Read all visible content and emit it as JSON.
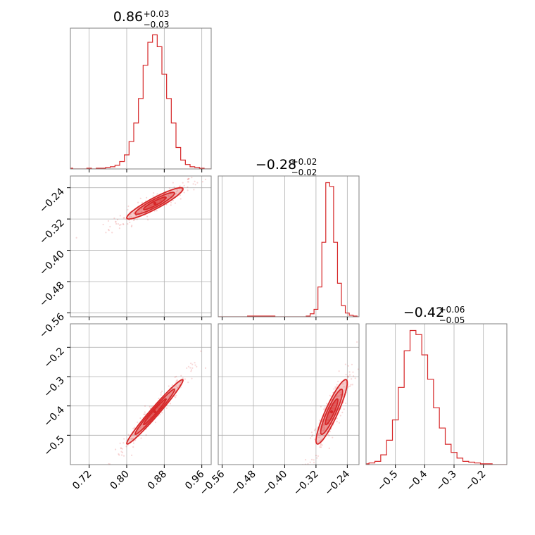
{
  "chart_data": [
    {
      "type": "histogram",
      "panel": "p00",
      "param_index": 0,
      "title": {
        "median": "0.86",
        "plus": "+0.03",
        "minus": "−0.03"
      },
      "x": [
        0.68,
        0.69,
        0.7,
        0.71,
        0.72,
        0.73,
        0.74,
        0.75,
        0.76,
        0.77,
        0.78,
        0.79,
        0.8,
        0.81,
        0.82,
        0.83,
        0.84,
        0.85,
        0.86,
        0.87,
        0.88,
        0.89,
        0.9,
        0.91,
        0.92,
        0.93,
        0.94,
        0.95,
        0.96,
        0.97,
        0.98
      ],
      "y": [
        1,
        0,
        0,
        0,
        1,
        0,
        1,
        1,
        2,
        3,
        5,
        10,
        19,
        37,
        62,
        95,
        140,
        171,
        181,
        165,
        128,
        95,
        62,
        29,
        12,
        6,
        3,
        2,
        1,
        0,
        0
      ],
      "xlim": [
        0.68,
        0.98
      ],
      "xticks": [
        "0.72",
        "0.80",
        "0.88",
        "0.96"
      ]
    },
    {
      "type": "histogram",
      "panel": "p11",
      "param_index": 1,
      "title": {
        "median": "−0.28",
        "plus": "+0.02",
        "minus": "−0.02"
      },
      "x": [
        -0.57,
        -0.56,
        -0.55,
        -0.54,
        -0.53,
        -0.52,
        -0.51,
        -0.5,
        -0.49,
        -0.48,
        -0.47,
        -0.46,
        -0.45,
        -0.44,
        -0.43,
        -0.42,
        -0.41,
        -0.4,
        -0.39,
        -0.38,
        -0.37,
        -0.36,
        -0.35,
        -0.34,
        -0.33,
        -0.32,
        -0.31,
        -0.3,
        -0.29,
        -0.28,
        -0.27,
        -0.26,
        -0.25,
        -0.24,
        -0.23,
        -0.22,
        -0.21
      ],
      "y": [
        0,
        0,
        0,
        0,
        0,
        0,
        0,
        0,
        1,
        1,
        1,
        1,
        1,
        1,
        1,
        0,
        0,
        0,
        0,
        0,
        0,
        0,
        0,
        1,
        4,
        10,
        40,
        100,
        180,
        175,
        100,
        45,
        15,
        5,
        2,
        1,
        0
      ],
      "xlim": [
        -0.57,
        -0.21
      ],
      "xticks": [
        "−0.56",
        "−0.48",
        "−0.40",
        "−0.32",
        "−0.24"
      ]
    },
    {
      "type": "histogram",
      "panel": "p22",
      "param_index": 2,
      "title": {
        "median": "−0.42",
        "plus": "+0.06",
        "minus": "−0.05"
      },
      "x": [
        -0.6,
        -0.58,
        -0.56,
        -0.54,
        -0.52,
        -0.5,
        -0.48,
        -0.46,
        -0.44,
        -0.42,
        -0.4,
        -0.38,
        -0.36,
        -0.34,
        -0.32,
        -0.3,
        -0.28,
        -0.26,
        -0.24,
        -0.22,
        -0.2,
        -0.18,
        -0.16,
        -0.14,
        -0.12
      ],
      "y": [
        1,
        2,
        4,
        12,
        30,
        55,
        95,
        140,
        165,
        160,
        135,
        105,
        70,
        45,
        25,
        15,
        8,
        4,
        3,
        2,
        1,
        1,
        0,
        0,
        0
      ],
      "xlim": [
        -0.6,
        -0.12
      ],
      "xticks": [
        "−0.5",
        "−0.4",
        "−0.3",
        "−0.2"
      ]
    },
    {
      "type": "contour",
      "panel": "p10",
      "x_param": 0,
      "y_param": 1,
      "xlim": [
        0.68,
        0.98
      ],
      "ylim": [
        -0.57,
        -0.21
      ],
      "center": [
        0.86,
        -0.28
      ],
      "sd": [
        0.03,
        0.02
      ],
      "rho": 0.92,
      "yticks": [
        "−0.24",
        "−0.32",
        "−0.40",
        "−0.48",
        "−0.56"
      ]
    },
    {
      "type": "contour",
      "panel": "p20",
      "x_param": 0,
      "y_param": 2,
      "xlim": [
        0.68,
        0.98
      ],
      "ylim": [
        -0.6,
        -0.12
      ],
      "center": [
        0.86,
        -0.42
      ],
      "sd": [
        0.03,
        0.055
      ],
      "rho": 0.98,
      "yticks": [
        "−0.2",
        "−0.3",
        "−0.4",
        "−0.5"
      ]
    },
    {
      "type": "contour",
      "panel": "p21",
      "x_param": 1,
      "y_param": 2,
      "xlim": [
        -0.57,
        -0.21
      ],
      "ylim": [
        -0.6,
        -0.12
      ],
      "center": [
        -0.28,
        -0.42
      ],
      "sd": [
        0.02,
        0.055
      ],
      "rho": 0.9
    }
  ],
  "colors": {
    "series": "#d62728",
    "grid": "#b0b0b0",
    "axes": "#000000",
    "frame": "#808080"
  }
}
